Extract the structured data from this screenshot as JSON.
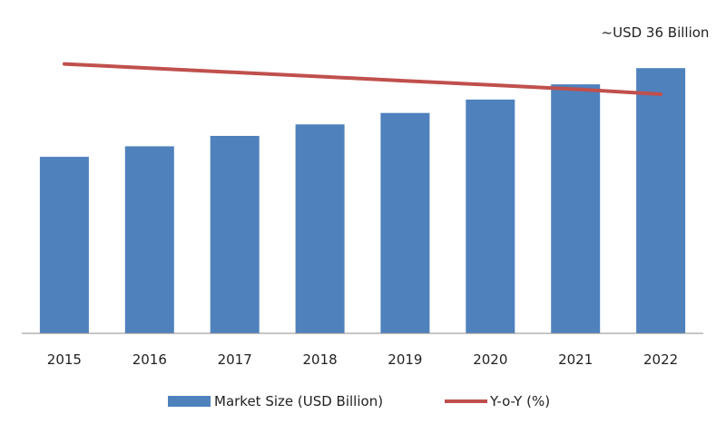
{
  "chart_data": {
    "type": "bar",
    "categories": [
      "2015",
      "2016",
      "2017",
      "2018",
      "2019",
      "2020",
      "2021",
      "2022"
    ],
    "series": [
      {
        "name": "Market Size (USD Billion)",
        "type": "bar",
        "color": "#4f81bd",
        "values": [
          18.5,
          19.6,
          20.7,
          21.9,
          23.1,
          24.5,
          26.1,
          27.8
        ]
      },
      {
        "name": "Y-o-Y (%)",
        "type": "line",
        "color": "#c0504d",
        "values": [
          10.0,
          9.5,
          9.0,
          8.5,
          8.0,
          7.5,
          7.0,
          6.4
        ]
      }
    ],
    "annotation": "~USD 36 Billion",
    "title": "",
    "xlabel": "",
    "ylabel": "",
    "ylim": [
      0,
      30
    ],
    "line_ylim": [
      -22,
      12
    ],
    "grid": false,
    "legend_position": "bottom"
  }
}
